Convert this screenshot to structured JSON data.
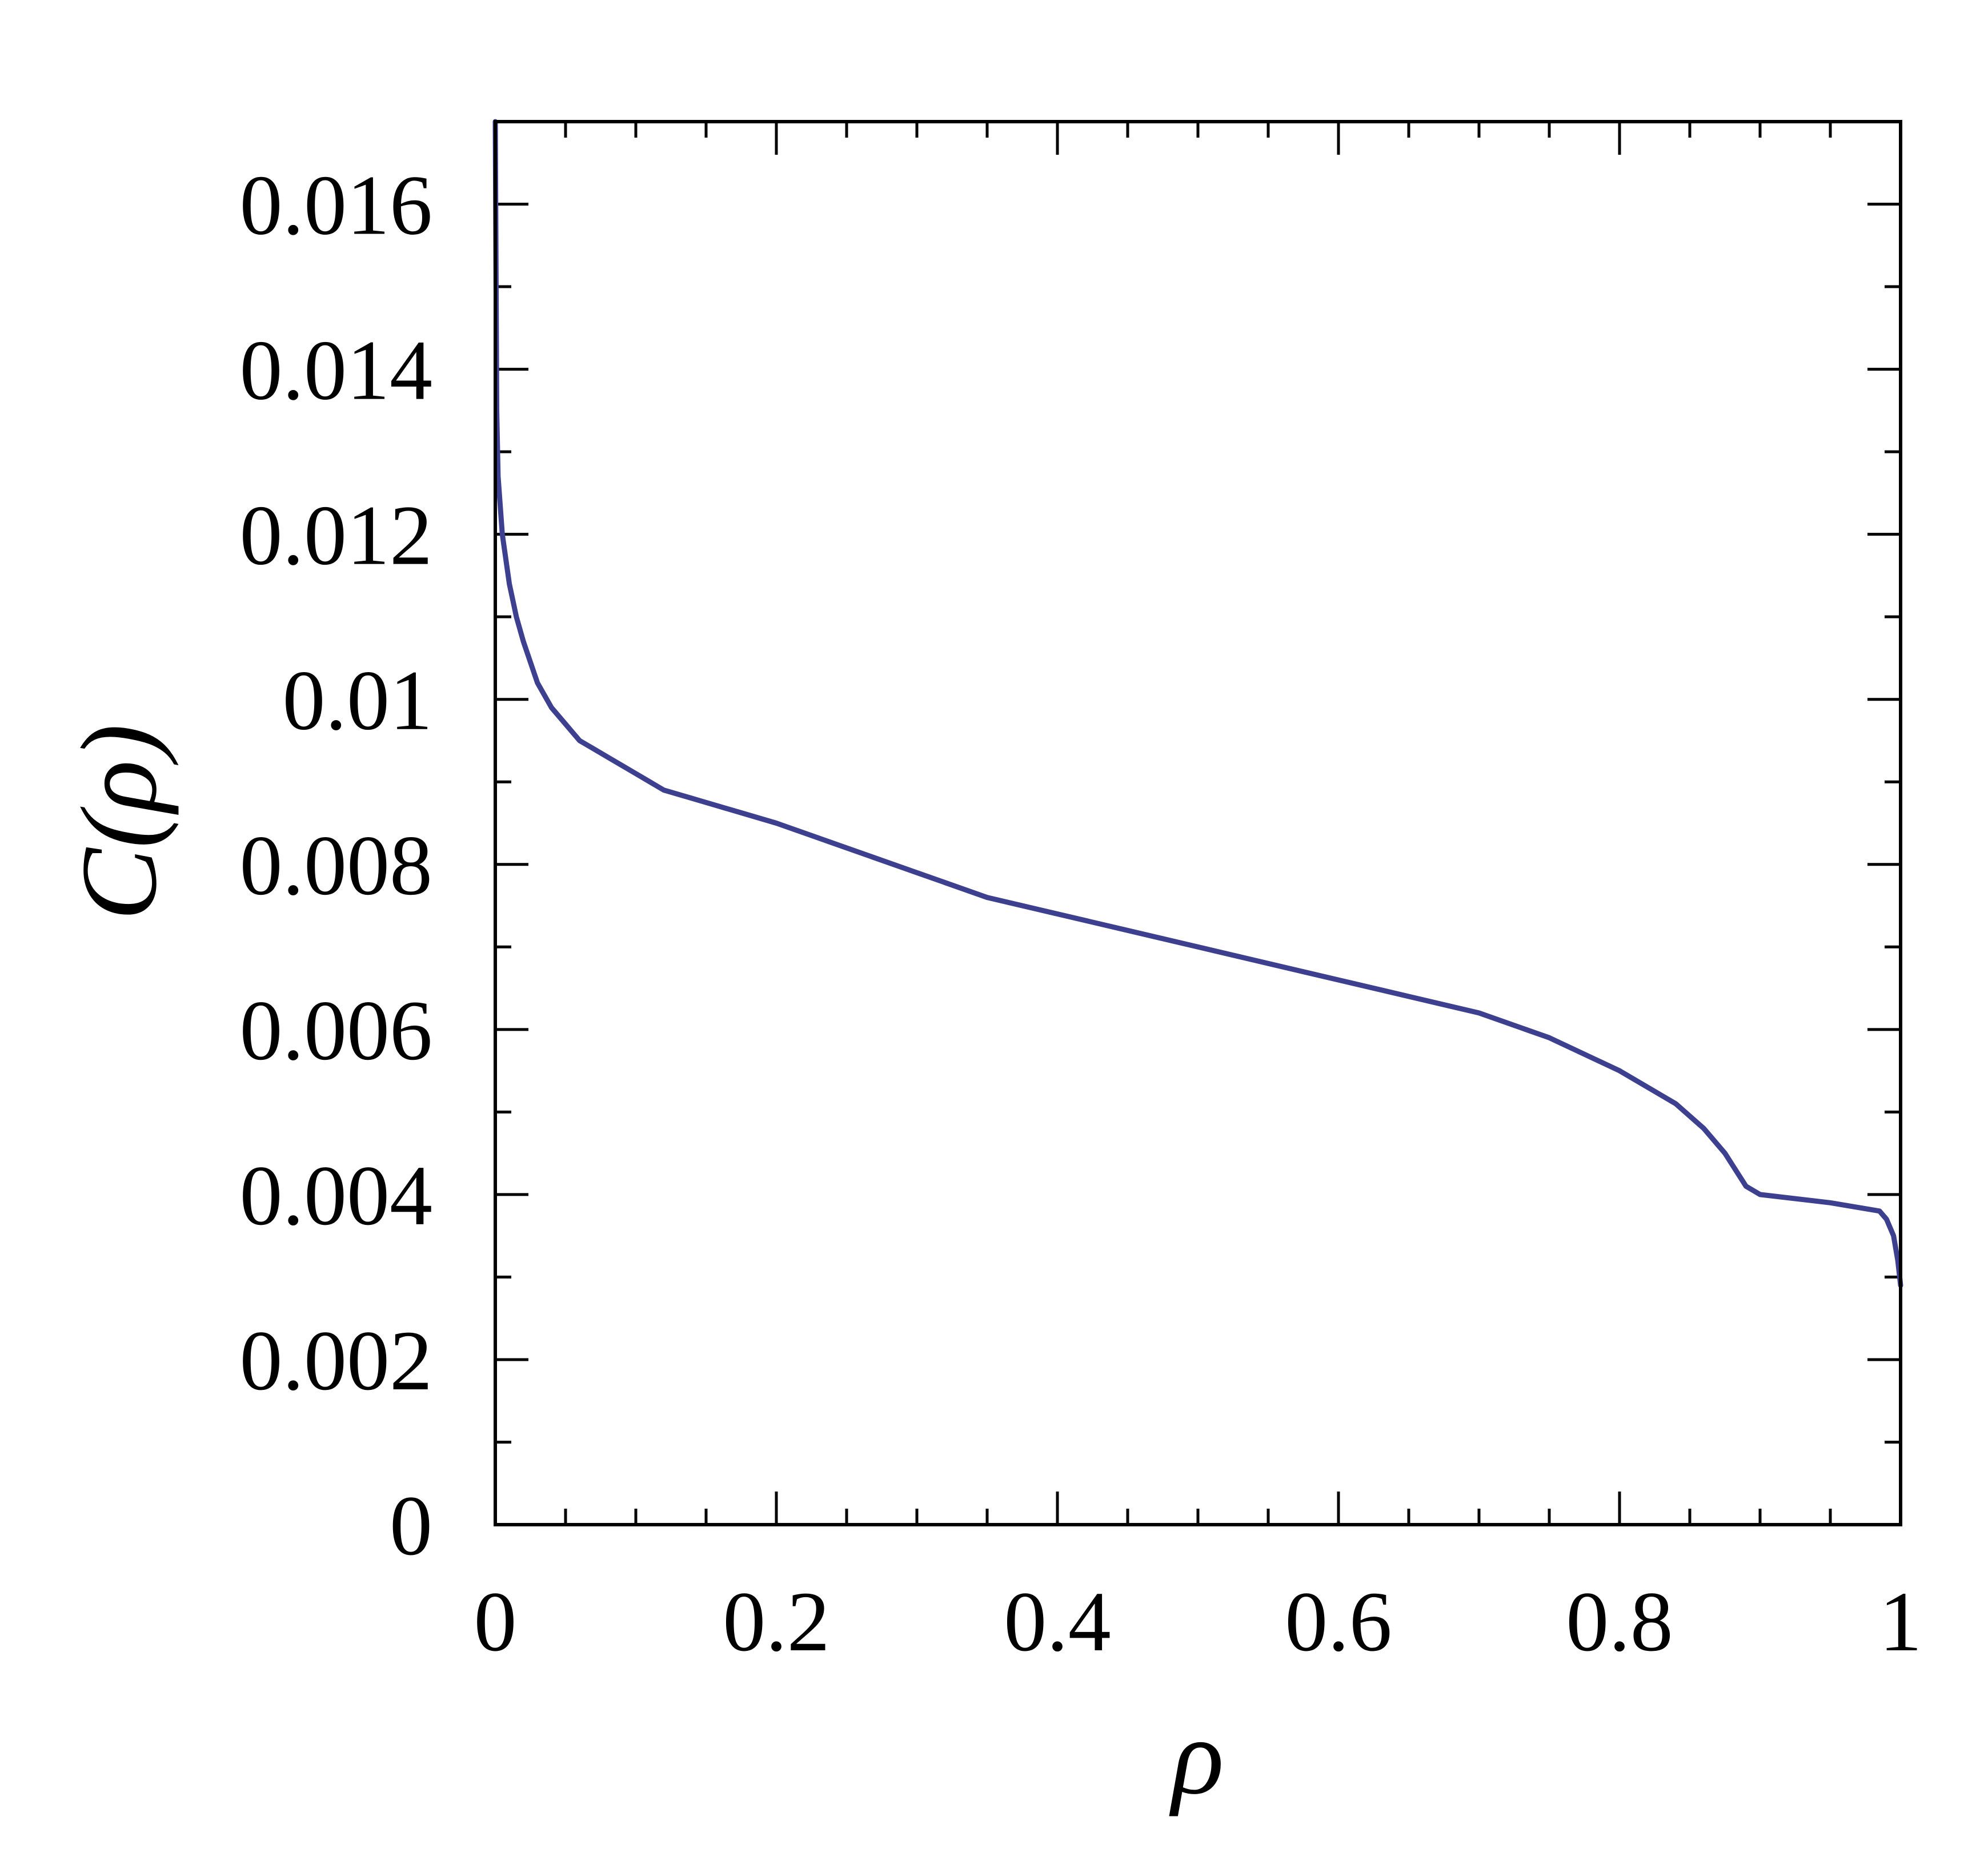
{
  "chart_data": {
    "type": "line",
    "title": "",
    "xlabel": "ρ",
    "ylabel": "C(ρ)",
    "xlim": [
      0,
      1
    ],
    "ylim": [
      0,
      0.017
    ],
    "x_ticks": [
      {
        "value": 0,
        "label": "0"
      },
      {
        "value": 0.2,
        "label": "0.2"
      },
      {
        "value": 0.4,
        "label": "0.4"
      },
      {
        "value": 0.6,
        "label": "0.6"
      },
      {
        "value": 0.8,
        "label": "0.8"
      },
      {
        "value": 1,
        "label": "1"
      }
    ],
    "y_ticks": [
      {
        "value": 0,
        "label": "0"
      },
      {
        "value": 0.002,
        "label": "0.002"
      },
      {
        "value": 0.004,
        "label": "0.004"
      },
      {
        "value": 0.006,
        "label": "0.006"
      },
      {
        "value": 0.008,
        "label": "0.008"
      },
      {
        "value": 0.01,
        "label": "0.01"
      },
      {
        "value": 0.012,
        "label": "0.012"
      },
      {
        "value": 0.014,
        "label": "0.014"
      },
      {
        "value": 0.016,
        "label": "0.016"
      }
    ],
    "x_minor_step": 0.05,
    "y_minor_step": 0.001,
    "grid": false,
    "series": [
      {
        "color": "#3d3f8f",
        "x": [
          0,
          0.001,
          0.002,
          0.005,
          0.01,
          0.015,
          0.02,
          0.03,
          0.04,
          0.05,
          0.06,
          0.07,
          0.08,
          0.1,
          0.12,
          0.14,
          0.16,
          0.18,
          0.2,
          0.25,
          0.3,
          0.35,
          0.4,
          0.45,
          0.5,
          0.55,
          0.6,
          0.65,
          0.7,
          0.75,
          0.8,
          0.82,
          0.84,
          0.86,
          0.875,
          0.89,
          0.9,
          0.95,
          0.985,
          0.99,
          0.995,
          0.998,
          1.0
        ],
        "y": [
          0.017,
          0.0135,
          0.0127,
          0.012,
          0.0114,
          0.011,
          0.0107,
          0.0102,
          0.0099,
          0.0097,
          0.0095,
          0.0094,
          0.0093,
          0.0091,
          0.0089,
          0.0088,
          0.0087,
          0.0086,
          0.0085,
          0.0082,
          0.0079,
          0.0076,
          0.0074,
          0.0072,
          0.007,
          0.0068,
          0.0066,
          0.0064,
          0.0062,
          0.0059,
          0.0055,
          0.0053,
          0.0051,
          0.0048,
          0.0045,
          0.0041,
          0.004,
          0.0039,
          0.0038,
          0.0037,
          0.0035,
          0.0032,
          0.0029
        ]
      }
    ]
  }
}
